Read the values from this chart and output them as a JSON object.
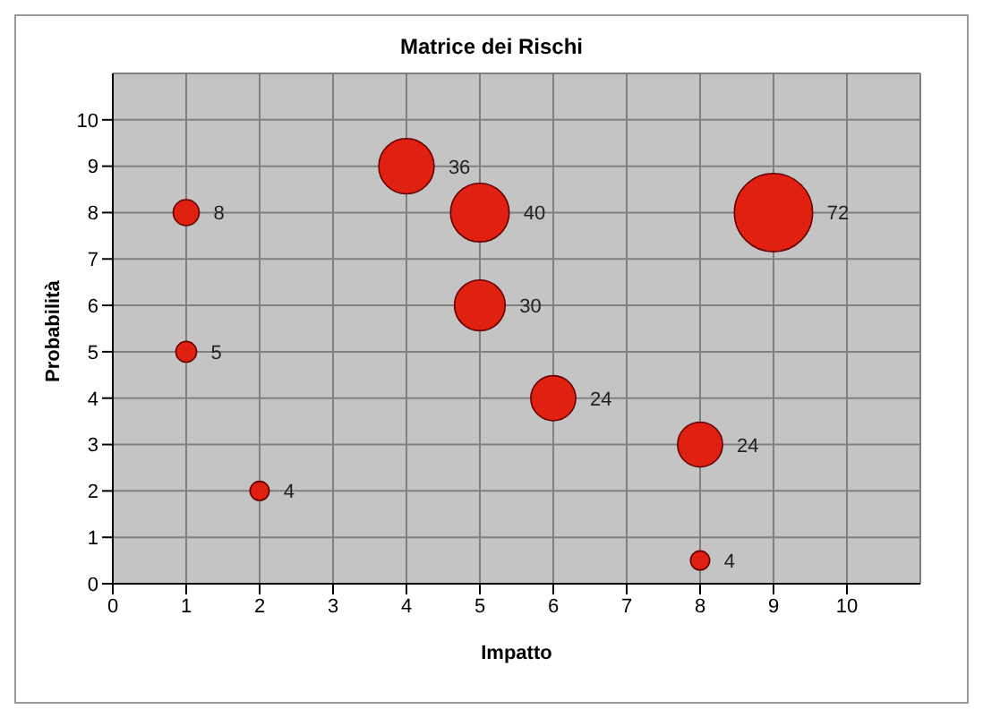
{
  "chart_data": {
    "type": "bubble",
    "title": "Matrice dei Rischi",
    "xlabel": "Impatto",
    "ylabel": "Probabilità",
    "x": [
      1,
      1,
      2,
      4,
      5,
      5,
      6,
      8,
      8,
      9
    ],
    "values": [
      8,
      5,
      2,
      9,
      8,
      6,
      4,
      3,
      0.5,
      8
    ],
    "sizes": [
      0.11,
      0.07,
      0.06,
      0.5,
      0.56,
      0.42,
      0.33,
      0.33,
      0.06,
      1
    ],
    "annotations": [
      {
        "text": "8",
        "x": 1,
        "y": 8
      },
      {
        "text": "5",
        "x": 1,
        "y": 5
      },
      {
        "text": "4",
        "x": 2,
        "y": 2
      },
      {
        "text": "36",
        "x": 4,
        "y": 9
      },
      {
        "text": "40",
        "x": 5,
        "y": 8
      },
      {
        "text": "30",
        "x": 5,
        "y": 6
      },
      {
        "text": "24",
        "x": 6,
        "y": 4
      },
      {
        "text": "24",
        "x": 8,
        "y": 3
      },
      {
        "text": "4",
        "x": 8,
        "y": 0.5
      },
      {
        "text": "72",
        "x": 9,
        "y": 8
      }
    ],
    "color": "#e02010",
    "marker": "circle",
    "xlim": [
      0,
      11
    ],
    "xticks": [
      0,
      1,
      2,
      3,
      4,
      5,
      6,
      7,
      8,
      9,
      10
    ],
    "ylim": [
      0,
      11
    ],
    "yticks": [
      0,
      1,
      2,
      3,
      4,
      5,
      6,
      7,
      8,
      9,
      10
    ],
    "grid": true
  }
}
